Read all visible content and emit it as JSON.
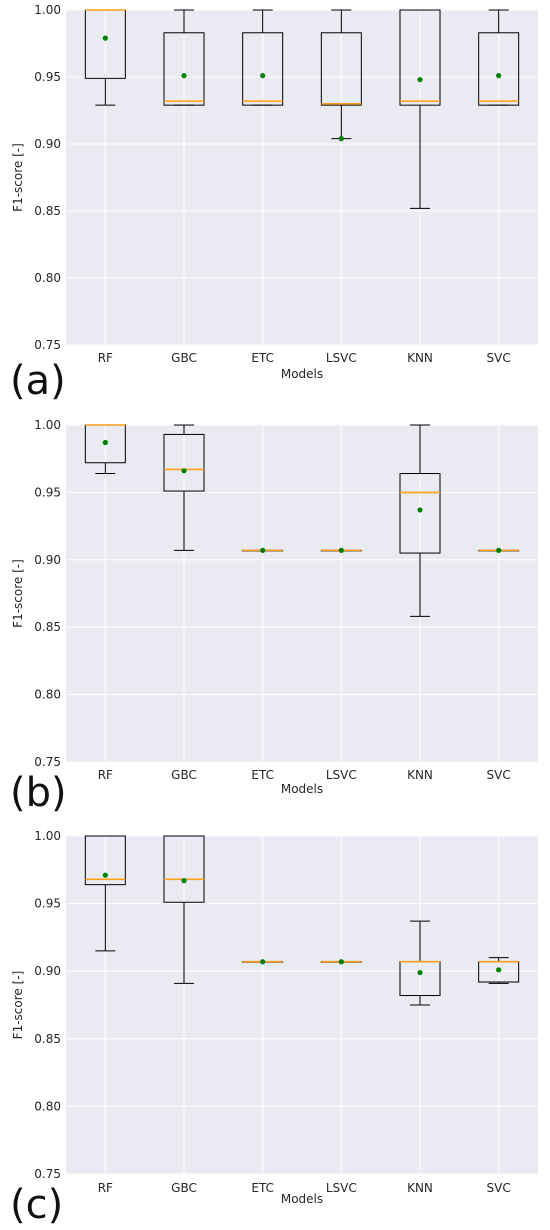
{
  "chart_data": [
    {
      "type": "box",
      "panel_label": "(a)",
      "xlabel": "Models",
      "ylabel": "F1-score [-]",
      "ylim": [
        0.75,
        1.0
      ],
      "yticks": [
        "0.75",
        "0.80",
        "0.85",
        "0.90",
        "0.95",
        "1.00"
      ],
      "grid": true,
      "categories": [
        "RF",
        "GBC",
        "ETC",
        "LSVC",
        "KNN",
        "SVC"
      ],
      "boxes": [
        {
          "whisker_low": 0.929,
          "q1": 0.949,
          "median": 1.0,
          "q3": 1.0,
          "whisker_high": 1.0,
          "mean": 0.979
        },
        {
          "whisker_low": 0.929,
          "q1": 0.929,
          "median": 0.932,
          "q3": 0.983,
          "whisker_high": 1.0,
          "mean": 0.951
        },
        {
          "whisker_low": 0.929,
          "q1": 0.929,
          "median": 0.932,
          "q3": 0.983,
          "whisker_high": 1.0,
          "mean": 0.951
        },
        {
          "whisker_low": 0.904,
          "q1": 0.929,
          "median": 0.93,
          "q3": 0.983,
          "whisker_high": 1.0,
          "mean": 0.904
        },
        {
          "whisker_low": 0.852,
          "q1": 0.929,
          "median": 0.932,
          "q3": 1.0,
          "whisker_high": 1.0,
          "mean": 0.948
        },
        {
          "whisker_low": 0.929,
          "q1": 0.929,
          "median": 0.932,
          "q3": 0.983,
          "whisker_high": 1.0,
          "mean": 0.951
        }
      ]
    },
    {
      "type": "box",
      "panel_label": "(b)",
      "xlabel": "Models",
      "ylabel": "F1-score [-]",
      "ylim": [
        0.75,
        1.0
      ],
      "yticks": [
        "0.75",
        "0.80",
        "0.85",
        "0.90",
        "0.95",
        "1.00"
      ],
      "grid": true,
      "categories": [
        "RF",
        "GBC",
        "ETC",
        "LSVC",
        "KNN",
        "SVC"
      ],
      "boxes": [
        {
          "whisker_low": 0.964,
          "q1": 0.972,
          "median": 1.0,
          "q3": 1.0,
          "whisker_high": 1.0,
          "mean": 0.987
        },
        {
          "whisker_low": 0.907,
          "q1": 0.951,
          "median": 0.967,
          "q3": 0.993,
          "whisker_high": 1.0,
          "mean": 0.966
        },
        {
          "whisker_low": 0.907,
          "q1": 0.907,
          "median": 0.907,
          "q3": 0.907,
          "whisker_high": 0.907,
          "mean": 0.907
        },
        {
          "whisker_low": 0.907,
          "q1": 0.907,
          "median": 0.907,
          "q3": 0.907,
          "whisker_high": 0.907,
          "mean": 0.907
        },
        {
          "whisker_low": 0.858,
          "q1": 0.905,
          "median": 0.95,
          "q3": 0.964,
          "whisker_high": 1.0,
          "mean": 0.937
        },
        {
          "whisker_low": 0.907,
          "q1": 0.907,
          "median": 0.907,
          "q3": 0.907,
          "whisker_high": 0.907,
          "mean": 0.907
        }
      ]
    },
    {
      "type": "box",
      "panel_label": "(c)",
      "xlabel": "Models",
      "ylabel": "F1-score [-]",
      "ylim": [
        0.75,
        1.0
      ],
      "yticks": [
        "0.75",
        "0.80",
        "0.85",
        "0.90",
        "0.95",
        "1.00"
      ],
      "grid": true,
      "categories": [
        "RF",
        "GBC",
        "ETC",
        "LSVC",
        "KNN",
        "SVC"
      ],
      "boxes": [
        {
          "whisker_low": 0.915,
          "q1": 0.964,
          "median": 0.968,
          "q3": 1.0,
          "whisker_high": 1.0,
          "mean": 0.971
        },
        {
          "whisker_low": 0.891,
          "q1": 0.951,
          "median": 0.968,
          "q3": 1.0,
          "whisker_high": 1.0,
          "mean": 0.967
        },
        {
          "whisker_low": 0.907,
          "q1": 0.907,
          "median": 0.907,
          "q3": 0.907,
          "whisker_high": 0.907,
          "mean": 0.907
        },
        {
          "whisker_low": 0.907,
          "q1": 0.907,
          "median": 0.907,
          "q3": 0.907,
          "whisker_high": 0.907,
          "mean": 0.907
        },
        {
          "whisker_low": 0.875,
          "q1": 0.882,
          "median": 0.907,
          "q3": 0.907,
          "whisker_high": 0.937,
          "mean": 0.899
        },
        {
          "whisker_low": 0.891,
          "q1": 0.892,
          "median": 0.907,
          "q3": 0.907,
          "whisker_high": 0.91,
          "mean": 0.901
        }
      ]
    }
  ],
  "colors": {
    "figure_background": "#ffffff",
    "plot_background": "#eaeaf2",
    "grid": "#ffffff",
    "box_edge": "#000000",
    "median": "#ff9f1a",
    "mean": "#008000",
    "text": "#262626"
  }
}
